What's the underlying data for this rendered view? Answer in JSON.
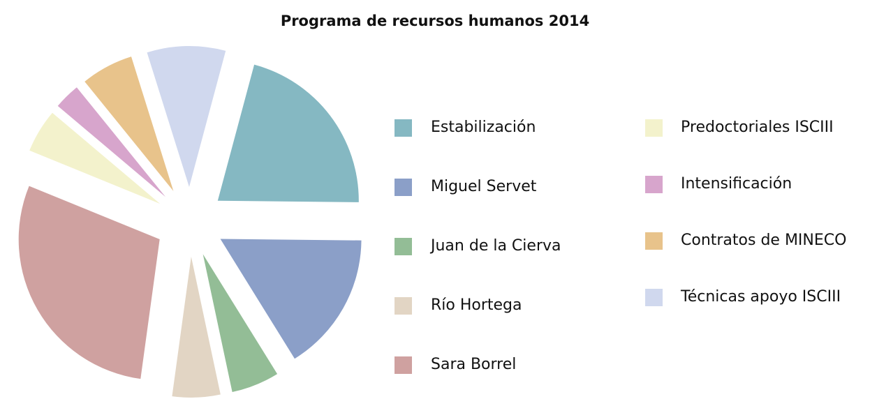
{
  "chart_data": {
    "type": "pie",
    "title": "Programa de recursos humanos 2014",
    "categories": [
      "Estabilización",
      "Miguel Servet",
      "Juan de la Cierva",
      "Río Hortega",
      "Sara Borrel",
      "Predoctoriales ISCIII",
      "Intensificación",
      "Contratos de MINECO",
      "Técnicas apoyo ISCIII"
    ],
    "values": [
      21,
      16,
      5.5,
      5.5,
      29,
      5,
      3,
      6,
      9
    ],
    "colors": [
      "#85b8c2",
      "#8b9fc8",
      "#93bd96",
      "#e2d5c4",
      "#cfa1a0",
      "#f3f2cc",
      "#d7a5cc",
      "#e8c38b",
      "#d0d8ee"
    ]
  }
}
